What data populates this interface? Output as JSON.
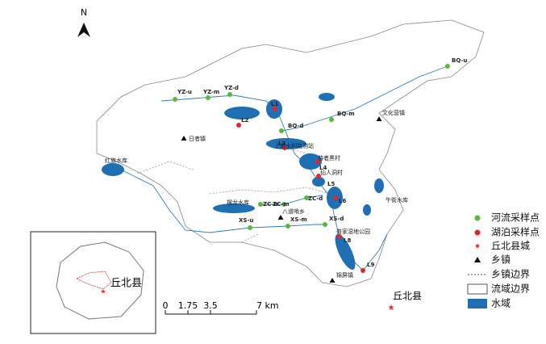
{
  "north": "N",
  "sites": {
    "YZ-u": "YZ-u",
    "YZ-m": "YZ-m",
    "YZ-d": "YZ-d",
    "BQ-u": "BQ-u",
    "BQ-m": "BQ-m",
    "BQ-d": "BQ-d",
    "ZC-u": "ZC-u",
    "ZC-m": "ZC-m",
    "ZC-d": "ZC-d",
    "XS-u": "XS-u",
    "XS-m": "XS-m",
    "XS-d": "XS-d",
    "L1": "L1",
    "L2": "L2",
    "L3": "L3",
    "L4": "L4",
    "L5": "L5",
    "L6": "L6",
    "L8": "L8",
    "L9": "L9"
  },
  "places": {
    "rizhe": "日者镇",
    "wenhuaying": "文化营镇",
    "station": "上游水利监测站",
    "puzhehei": "普者黑村",
    "xianrendong": "仙人洞村",
    "wujie": "午街水库",
    "badaoshao": "八道哨乡",
    "jinping": "锦屏镇",
    "wetland": "普家湿地公园",
    "bailong": "摆龙水库",
    "hongqi": "红旗水库"
  },
  "county": "丘北县",
  "legend": [
    "河流采样点",
    "湖泊采样点",
    "丘北县城",
    "乡镇",
    "乡镇边界",
    "流域边界",
    "水域"
  ],
  "inset": {
    "title": "丘北县"
  },
  "scale": [
    "0",
    "1.75",
    "3.5",
    "7 km"
  ]
}
